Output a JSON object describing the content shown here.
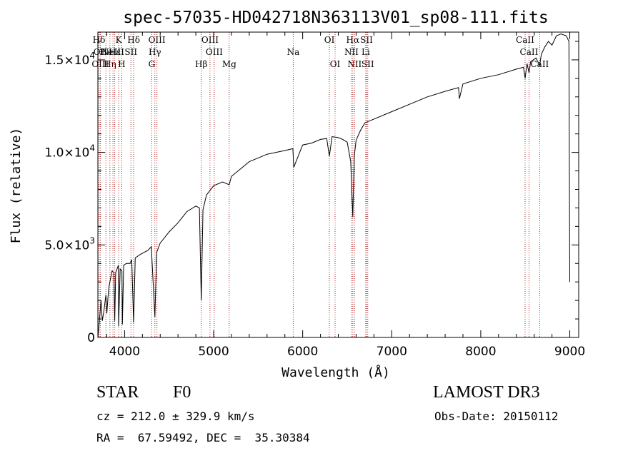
{
  "chart_data": {
    "type": "line",
    "title": "spec-57035-HD042718N363113V01_sp08-111.fits",
    "xlabel": "Wavelength (Å)",
    "ylabel": "Flux (relative)",
    "xlim": [
      3700,
      9100
    ],
    "ylim": [
      0,
      16500
    ],
    "x_ticks": [
      4000,
      5000,
      6000,
      7000,
      8000,
      9000
    ],
    "y_ticks": [
      {
        "value": 0,
        "mant": "0",
        "exp": ""
      },
      {
        "value": 5000,
        "mant": "5.0×10",
        "exp": "3"
      },
      {
        "value": 10000,
        "mant": "1.0×10",
        "exp": "4"
      },
      {
        "value": 15000,
        "mant": "1.5×10",
        "exp": "4"
      }
    ],
    "spectrum": {
      "x": [
        3700,
        3715,
        3735,
        3750,
        3770,
        3790,
        3800,
        3820,
        3835,
        3860,
        3880,
        3889,
        3900,
        3930,
        3933,
        3950,
        3970,
        3975,
        3990,
        4020,
        4060,
        4080,
        4101,
        4120,
        4180,
        4260,
        4300,
        4340,
        4360,
        4400,
        4500,
        4600,
        4700,
        4800,
        4840,
        4861,
        4880,
        4920,
        4960,
        5000,
        5100,
        5175,
        5200,
        5300,
        5400,
        5500,
        5600,
        5700,
        5800,
        5890,
        5900,
        6000,
        6100,
        6200,
        6270,
        6300,
        6330,
        6400,
        6450,
        6500,
        6540,
        6563,
        6580,
        6600,
        6650,
        6700,
        6800,
        7000,
        7200,
        7400,
        7600,
        7750,
        7760,
        7800,
        8000,
        8200,
        8400,
        8480,
        8498,
        8520,
        8542,
        8560,
        8620,
        8662,
        8680,
        8720,
        8760,
        8800,
        8850,
        8900,
        8960,
        8990,
        9000
      ],
      "y": [
        0,
        800,
        2000,
        900,
        1500,
        2300,
        1300,
        2600,
        3000,
        3600,
        3500,
        900,
        3500,
        3900,
        600,
        3700,
        3600,
        700,
        3900,
        4000,
        4000,
        4200,
        800,
        4300,
        4500,
        4700,
        4900,
        1100,
        4600,
        5100,
        5700,
        6200,
        6800,
        7100,
        7000,
        2000,
        6900,
        7700,
        7950,
        8200,
        8400,
        8250,
        8700,
        9100,
        9500,
        9700,
        9900,
        10000,
        10100,
        10200,
        9200,
        10400,
        10500,
        10700,
        10750,
        9800,
        10850,
        10800,
        10700,
        10550,
        9500,
        6500,
        9800,
        10650,
        11200,
        11600,
        11800,
        12200,
        12600,
        13000,
        13300,
        13500,
        12900,
        13700,
        14000,
        14200,
        14500,
        14600,
        14000,
        14800,
        14300,
        14900,
        15100,
        14700,
        15300,
        15700,
        16000,
        15800,
        16300,
        16400,
        16300,
        16000,
        3000
      ]
    },
    "lines": [
      {
        "name": "Hδ",
        "wave": 3712,
        "row": 0
      },
      {
        "name": "OII",
        "wave": 3727,
        "row": 1
      },
      {
        "name": "OIII",
        "wave": 3727,
        "row": 2
      },
      {
        "name": "He",
        "wave": 3790,
        "row": 1
      },
      {
        "name": "Hη",
        "wave": 3835,
        "row": 2
      },
      {
        "name": "K",
        "wave": 3934,
        "row": 0
      },
      {
        "name": "NeIII",
        "wave": 3869,
        "row": 1
      },
      {
        "name": "Hε",
        "wave": 3889,
        "row": 1
      },
      {
        "name": "SII",
        "wave": 4071,
        "row": 1
      },
      {
        "name": "H",
        "wave": 3968,
        "row": 2
      },
      {
        "name": "Hδ",
        "wave": 4102,
        "row": 0
      },
      {
        "name": "OIII",
        "wave": 4363,
        "row": 0
      },
      {
        "name": "Hγ",
        "wave": 4340,
        "row": 1
      },
      {
        "name": "G",
        "wave": 4305,
        "row": 2
      },
      {
        "name": "Hβ",
        "wave": 4861,
        "row": 2
      },
      {
        "name": "OIII",
        "wave": 4959,
        "row": 0
      },
      {
        "name": "OIII",
        "wave": 5007,
        "row": 1
      },
      {
        "name": "Mg",
        "wave": 5175,
        "row": 2
      },
      {
        "name": "Na",
        "wave": 5894,
        "row": 1
      },
      {
        "name": "OI",
        "wave": 6300,
        "row": 0
      },
      {
        "name": "OI",
        "wave": 6364,
        "row": 2
      },
      {
        "name": "Hα",
        "wave": 6563,
        "row": 0
      },
      {
        "name": "NII",
        "wave": 6548,
        "row": 1
      },
      {
        "name": "NII",
        "wave": 6583,
        "row": 2
      },
      {
        "name": "SII",
        "wave": 6717,
        "row": 0
      },
      {
        "name": "Li",
        "wave": 6708,
        "row": 1
      },
      {
        "name": "SII",
        "wave": 6731,
        "row": 2
      },
      {
        "name": "CaII",
        "wave": 8498,
        "row": 0
      },
      {
        "name": "CaII",
        "wave": 8542,
        "row": 1
      },
      {
        "name": "CaII",
        "wave": 8662,
        "row": 2
      }
    ]
  },
  "info": {
    "object_class": "STAR",
    "subclass": "F0",
    "survey": "LAMOST DR3",
    "cz": "cz = 212.0 ± 329.9 km/s",
    "obs_date": "Obs-Date: 20150112",
    "coords": "RA =  67.59492, DEC =  35.30384"
  }
}
